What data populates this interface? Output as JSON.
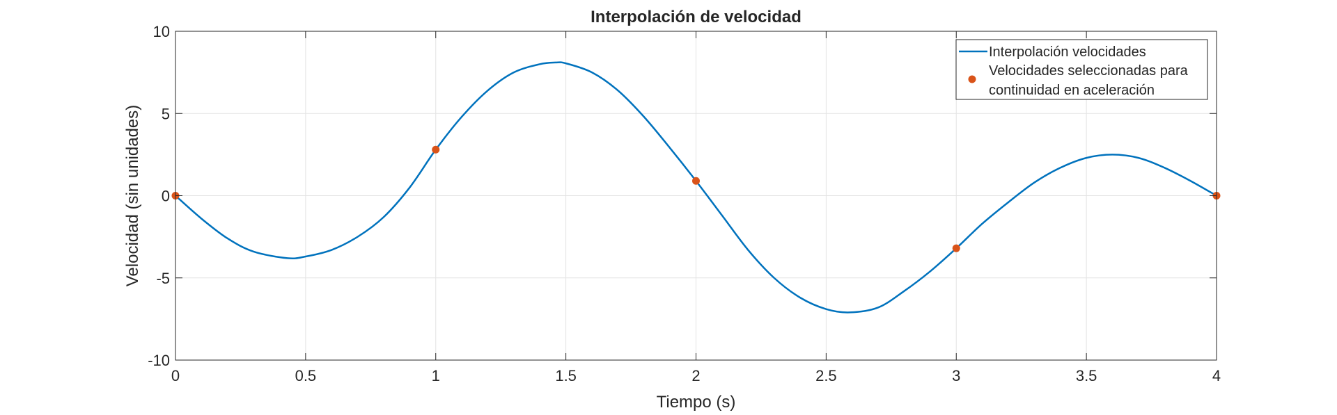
{
  "chart_data": {
    "type": "line",
    "title": "Interpolación de velocidad",
    "xlabel": "Tiempo (s)",
    "ylabel": "Velocidad (sin unidades)",
    "xlim": [
      0,
      4
    ],
    "ylim": [
      -10,
      10
    ],
    "xticks": [
      0,
      0.5,
      1,
      1.5,
      2,
      2.5,
      3,
      3.5,
      4
    ],
    "xtick_labels": [
      "0",
      "0.5",
      "1",
      "1.5",
      "2",
      "2.5",
      "3",
      "3.5",
      "4"
    ],
    "yticks": [
      -10,
      -5,
      0,
      5,
      10
    ],
    "ytick_labels": [
      "-10",
      "-5",
      "0",
      "5",
      "10"
    ],
    "grid": true,
    "legend_position": "top-right",
    "series": [
      {
        "name": "Interpolación velocidades",
        "style": "line",
        "color": "#0072BD",
        "x": [
          0,
          0.1,
          0.2,
          0.3,
          0.43,
          0.5,
          0.6,
          0.7,
          0.8,
          0.9,
          1.0,
          1.1,
          1.2,
          1.3,
          1.4,
          1.46,
          1.5,
          1.6,
          1.7,
          1.8,
          1.9,
          2.0,
          2.1,
          2.2,
          2.3,
          2.4,
          2.5,
          2.59,
          2.7,
          2.8,
          2.9,
          3.0,
          3.1,
          3.2,
          3.3,
          3.4,
          3.5,
          3.6,
          3.7,
          3.8,
          3.9,
          4.0
        ],
        "y": [
          0,
          -1.4,
          -2.6,
          -3.4,
          -3.8,
          -3.7,
          -3.3,
          -2.5,
          -1.3,
          0.5,
          2.8,
          4.8,
          6.4,
          7.5,
          8.0,
          8.1,
          8.05,
          7.5,
          6.4,
          4.8,
          2.9,
          0.9,
          -1.2,
          -3.3,
          -5.0,
          -6.2,
          -6.9,
          -7.1,
          -6.8,
          -5.8,
          -4.6,
          -3.2,
          -1.7,
          -0.4,
          0.8,
          1.7,
          2.3,
          2.5,
          2.3,
          1.7,
          0.9,
          0
        ]
      },
      {
        "name": "Velocidades seleccionadas para continuidad  en aceleración",
        "legend_lines": [
          "Velocidades seleccionadas para",
          "continuidad  en aceleración"
        ],
        "style": "markers",
        "color": "#D95319",
        "x": [
          0,
          1,
          2,
          3,
          4
        ],
        "y": [
          0,
          2.8,
          0.9,
          -3.2,
          0
        ]
      }
    ]
  }
}
